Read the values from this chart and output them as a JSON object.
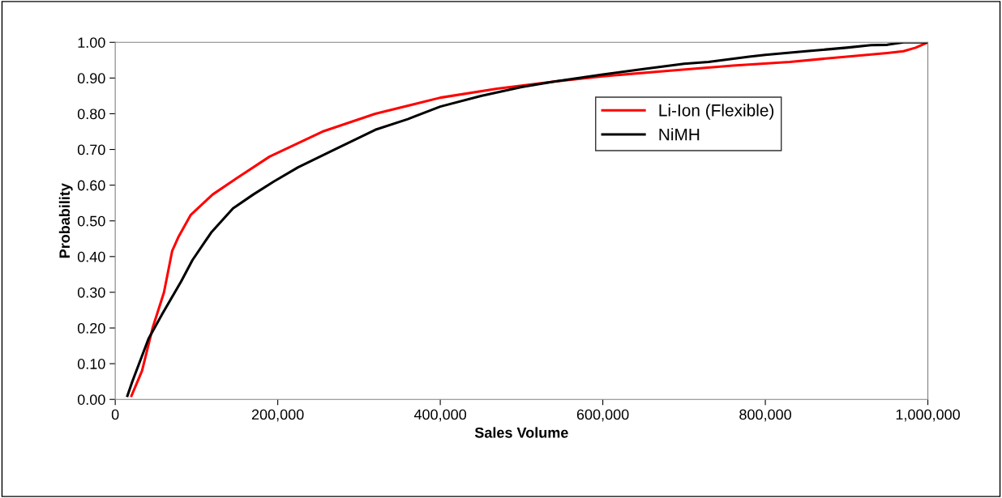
{
  "chart_data": {
    "type": "line",
    "xlabel": "Sales Volume",
    "ylabel": "Probability",
    "xlim": [
      0,
      1000000
    ],
    "xticks": [
      {
        "value": 0,
        "label": "0"
      },
      {
        "value": 200000,
        "label": "200,000"
      },
      {
        "value": 400000,
        "label": "400,000"
      },
      {
        "value": 600000,
        "label": "600,000"
      },
      {
        "value": 800000,
        "label": "800,000"
      },
      {
        "value": 1000000,
        "label": "1,000,000"
      }
    ],
    "ylim": [
      0,
      1
    ],
    "yticks": [
      {
        "value": 0,
        "label": "0.00"
      },
      {
        "value": 0.1,
        "label": "0.10"
      },
      {
        "value": 0.2,
        "label": "0.20"
      },
      {
        "value": 0.3,
        "label": "0.30"
      },
      {
        "value": 0.4,
        "label": "0.40"
      },
      {
        "value": 0.5,
        "label": "0.50"
      },
      {
        "value": 0.6,
        "label": "0.60"
      },
      {
        "value": 0.7,
        "label": "0.70"
      },
      {
        "value": 0.8,
        "label": "0.80"
      },
      {
        "value": 0.9,
        "label": "0.90"
      },
      {
        "value": 1,
        "label": "1.00"
      }
    ],
    "grid": false,
    "legend": "top right",
    "marker": "none",
    "line_style": "solid",
    "series": [
      {
        "name": "Li-Ion (Flexible)",
        "color": "#ff0000",
        "x": [
          20000,
          33000,
          46000,
          60000,
          70000,
          78000,
          93000,
          120000,
          150000,
          190000,
          255000,
          320000,
          400000,
          470000,
          540000,
          600000,
          680000,
          760000,
          830000,
          900000,
          950000,
          970000,
          985000,
          1000000
        ],
        "values": [
          0.01,
          0.08,
          0.2,
          0.3,
          0.415,
          0.456,
          0.517,
          0.574,
          0.62,
          0.68,
          0.75,
          0.8,
          0.845,
          0.87,
          0.89,
          0.905,
          0.92,
          0.935,
          0.945,
          0.96,
          0.97,
          0.975,
          0.985,
          1.0
        ]
      },
      {
        "name": "NiMH",
        "color": "#000000",
        "x": [
          15000,
          21000,
          41000,
          58000,
          81000,
          95000,
          118000,
          145000,
          170000,
          195000,
          225000,
          270000,
          320000,
          360000,
          400000,
          450000,
          500000,
          540000,
          600000,
          650000,
          700000,
          730000,
          780000,
          800000,
          850000,
          900000,
          930000,
          950000,
          970000,
          1000000
        ],
        "values": [
          0.01,
          0.05,
          0.17,
          0.24,
          0.33,
          0.39,
          0.467,
          0.535,
          0.574,
          0.61,
          0.65,
          0.7,
          0.755,
          0.785,
          0.82,
          0.85,
          0.875,
          0.89,
          0.91,
          0.925,
          0.94,
          0.945,
          0.96,
          0.965,
          0.975,
          0.985,
          0.992,
          0.993,
          1.0,
          1.0
        ]
      }
    ]
  }
}
